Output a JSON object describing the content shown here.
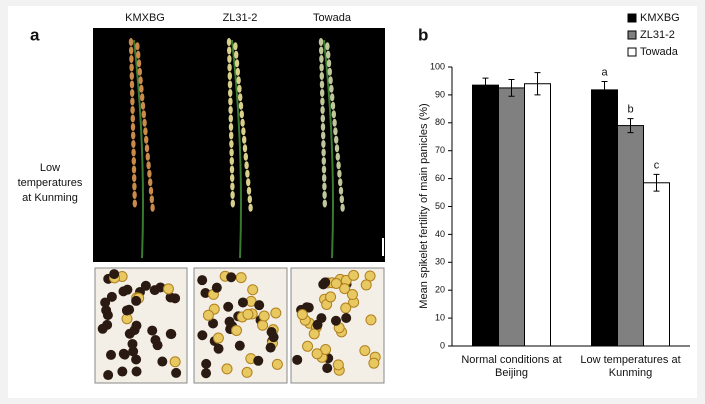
{
  "panel_a": {
    "label": "a",
    "columns": [
      "KMXBG",
      "ZL31-2",
      "Towada"
    ],
    "side_label": [
      "Low",
      "temperatures",
      "at Kunming"
    ]
  },
  "chart_data": {
    "type": "bar",
    "panel_label": "b",
    "y_label": "Mean spikelet fertility of main panicles (%)",
    "categories": [
      [
        "Normal conditions at",
        "Beijing"
      ],
      [
        "Low temperatures at",
        "Kunming"
      ]
    ],
    "series": [
      {
        "name": "KMXBG",
        "color": "#000000",
        "values": [
          93.5,
          91.8
        ],
        "errors": [
          2.5,
          3
        ]
      },
      {
        "name": "ZL31-2",
        "color": "#808080",
        "values": [
          92.5,
          79
        ],
        "errors": [
          3,
          2.5
        ]
      },
      {
        "name": "Towada",
        "color": "#ffffff",
        "values": [
          94,
          58.5
        ],
        "errors": [
          4,
          3
        ]
      }
    ],
    "annotations": [
      "a",
      "b",
      "c"
    ],
    "ylim": [
      0,
      100
    ],
    "yticks": [
      0,
      10,
      20,
      30,
      40,
      50,
      60,
      70,
      80,
      90,
      100
    ],
    "legend": "top-right"
  }
}
